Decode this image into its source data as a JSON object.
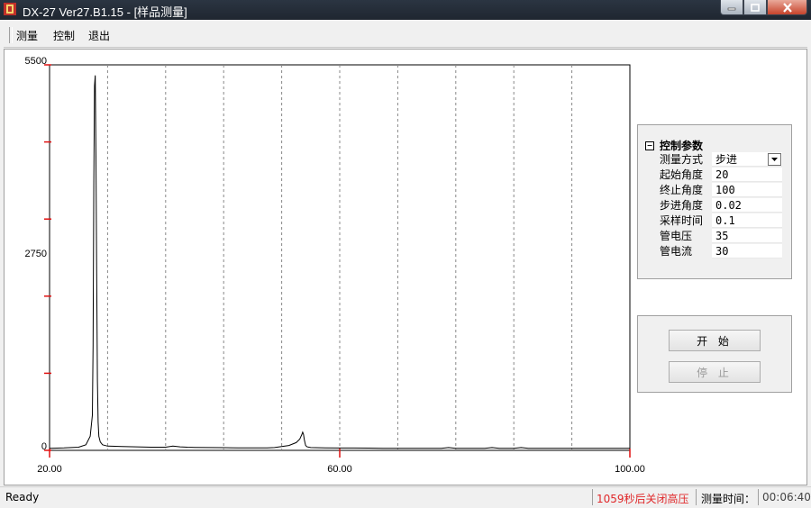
{
  "window": {
    "title": "DX-27 Ver27.B1.15 - [样品测量]",
    "icons": [
      "app-icon",
      "minimize-icon",
      "maximize-icon",
      "close-icon"
    ]
  },
  "menu": [
    {
      "label": "测量"
    },
    {
      "label": "控制"
    },
    {
      "label": "退出"
    }
  ],
  "params": {
    "header": "控制参数",
    "rows": [
      {
        "label": "测量方式",
        "value": "步进",
        "dropdown": true
      },
      {
        "label": "起始角度",
        "value": "20"
      },
      {
        "label": "终止角度",
        "value": "100"
      },
      {
        "label": "步进角度",
        "value": "0.02"
      },
      {
        "label": "采样时间",
        "value": "0.1"
      },
      {
        "label": "管电压",
        "value": "35"
      },
      {
        "label": "管电流",
        "value": "30"
      }
    ]
  },
  "buttons": {
    "start": "开 始",
    "stop": "停 止"
  },
  "status": {
    "ready": "Ready",
    "warning": "1059秒后关闭高压",
    "time_label": "测量时间：",
    "time_value": "00:06:40"
  },
  "chart_data": {
    "type": "line",
    "x_range": [
      20,
      100
    ],
    "y_range": [
      0,
      5500
    ],
    "x_tick_labels": [
      "20.00",
      "60.00",
      "100.00"
    ],
    "y_tick_labels": [
      "0",
      "2750",
      "5500"
    ],
    "vertical_gridlines": [
      28,
      36,
      44,
      52,
      60,
      68,
      76,
      84,
      92
    ],
    "grid_style": "dashed",
    "colors": {
      "line": "#000000",
      "tick": "#e01010",
      "grid": "#888888"
    },
    "series": [
      {
        "x": [
          20,
          22,
          24,
          25,
          25.6,
          25.9,
          26.0,
          26.1,
          26.2,
          26.3,
          26.4,
          26.5,
          26.6,
          26.7,
          26.8,
          27.0,
          27.3,
          28,
          30,
          32,
          34,
          36,
          37,
          38,
          39,
          40,
          42,
          44,
          46,
          48,
          50,
          51,
          52,
          53,
          54,
          54.5,
          54.8,
          54.9,
          55.0,
          55.1,
          55.2,
          55.3,
          55.5,
          56,
          58,
          60,
          62,
          64,
          66,
          68,
          70,
          72,
          74,
          75,
          76,
          77,
          78,
          80,
          81,
          82,
          84,
          85,
          86,
          88,
          90,
          92,
          94,
          96,
          98,
          100
        ],
        "y": [
          30,
          35,
          45,
          80,
          200,
          500,
          1500,
          3800,
          5200,
          5350,
          4200,
          2500,
          1000,
          400,
          200,
          120,
          80,
          60,
          55,
          50,
          45,
          45,
          60,
          50,
          45,
          42,
          40,
          38,
          36,
          35,
          35,
          40,
          55,
          70,
          110,
          160,
          230,
          260,
          230,
          160,
          110,
          70,
          50,
          40,
          35,
          33,
          33,
          32,
          30,
          30,
          30,
          30,
          30,
          40,
          30,
          30,
          30,
          30,
          40,
          30,
          30,
          40,
          30,
          28,
          28,
          28,
          28,
          28,
          28,
          28
        ]
      }
    ]
  }
}
